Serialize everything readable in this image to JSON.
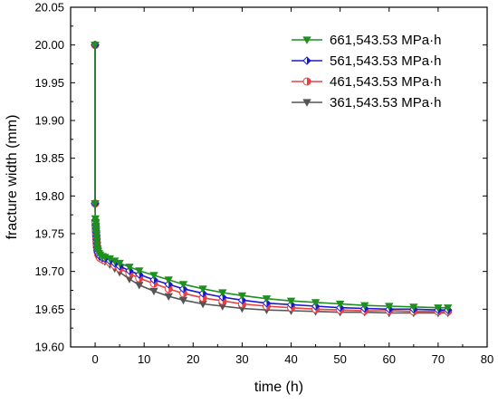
{
  "chart_data": {
    "type": "line",
    "title": "",
    "xlabel": "time (h)",
    "ylabel": "fracture width (mm)",
    "xlim": [
      -5,
      80
    ],
    "ylim": [
      19.6,
      20.05
    ],
    "xticks": [
      0,
      10,
      20,
      30,
      40,
      50,
      60,
      70,
      80
    ],
    "yticks": [
      19.6,
      19.65,
      19.7,
      19.75,
      19.8,
      19.85,
      19.9,
      19.95,
      20.0,
      20.05
    ],
    "xtick_labels": [
      "0",
      "10",
      "20",
      "30",
      "40",
      "50",
      "60",
      "70",
      "80"
    ],
    "ytick_labels": [
      "19.60",
      "19.65",
      "19.70",
      "19.75",
      "19.80",
      "19.85",
      "19.90",
      "19.95",
      "20.00",
      "20.05"
    ],
    "grid": false,
    "legend_position": "top-right",
    "series": [
      {
        "name": "661,543.53 MPa·h",
        "color": "#1f8f1f",
        "marker": "triangle-down",
        "x": [
          0,
          0,
          0.05,
          0.1,
          0.15,
          0.2,
          0.25,
          0.3,
          0.35,
          0.4,
          0.5,
          0.6,
          0.8,
          1,
          1.5,
          2,
          3,
          4,
          5,
          7,
          9,
          12,
          15,
          18,
          22,
          26,
          30,
          35,
          40,
          45,
          50,
          55,
          60,
          65,
          70,
          72
        ],
        "y": [
          20.0,
          19.79,
          19.77,
          19.765,
          19.76,
          19.755,
          19.75,
          19.745,
          19.74,
          19.735,
          19.73,
          19.727,
          19.724,
          19.722,
          19.72,
          19.719,
          19.717,
          19.714,
          19.711,
          19.706,
          19.701,
          19.695,
          19.689,
          19.683,
          19.677,
          19.672,
          19.668,
          19.664,
          19.661,
          19.659,
          19.657,
          19.655,
          19.654,
          19.653,
          19.652,
          19.652
        ]
      },
      {
        "name": "561,543.53 MPa·h",
        "color": "#1a1acc",
        "marker": "diamond-half",
        "x": [
          0,
          0,
          0.05,
          0.1,
          0.15,
          0.2,
          0.25,
          0.3,
          0.35,
          0.4,
          0.5,
          0.6,
          0.8,
          1,
          1.5,
          2,
          3,
          4,
          5,
          7,
          9,
          12,
          15,
          18,
          22,
          26,
          30,
          35,
          40,
          45,
          50,
          55,
          60,
          65,
          70,
          72
        ],
        "y": [
          20.0,
          19.79,
          19.768,
          19.762,
          19.757,
          19.752,
          19.747,
          19.742,
          19.737,
          19.732,
          19.728,
          19.725,
          19.722,
          19.72,
          19.718,
          19.717,
          19.714,
          19.711,
          19.707,
          19.701,
          19.696,
          19.689,
          19.683,
          19.677,
          19.671,
          19.666,
          19.662,
          19.658,
          19.656,
          19.654,
          19.652,
          19.651,
          19.65,
          19.65,
          19.649,
          19.649
        ]
      },
      {
        "name": "461,543.53 MPa·h",
        "color": "#e84040",
        "marker": "circle-half",
        "x": [
          0,
          0,
          0.05,
          0.1,
          0.15,
          0.2,
          0.25,
          0.3,
          0.35,
          0.4,
          0.5,
          0.6,
          0.8,
          1,
          1.5,
          2,
          3,
          4,
          5,
          7,
          9,
          12,
          15,
          18,
          22,
          26,
          30,
          35,
          40,
          45,
          50,
          55,
          60,
          65,
          70,
          72
        ],
        "y": [
          20.0,
          19.79,
          19.766,
          19.76,
          19.754,
          19.749,
          19.744,
          19.739,
          19.734,
          19.73,
          19.726,
          19.723,
          19.72,
          19.718,
          19.716,
          19.715,
          19.712,
          19.708,
          19.704,
          19.697,
          19.691,
          19.684,
          19.677,
          19.671,
          19.665,
          19.661,
          19.657,
          19.654,
          19.652,
          19.65,
          19.649,
          19.648,
          19.648,
          19.647,
          19.647,
          19.647
        ]
      },
      {
        "name": "361,543.53 MPa·h",
        "color": "#555555",
        "marker": "triangle-down",
        "x": [
          0,
          0,
          0.05,
          0.1,
          0.15,
          0.2,
          0.25,
          0.3,
          0.35,
          0.4,
          0.5,
          0.6,
          0.8,
          1,
          1.5,
          2,
          3,
          4,
          5,
          7,
          9,
          12,
          15,
          18,
          22,
          26,
          30,
          35,
          40,
          45,
          50,
          55,
          60,
          65,
          70,
          72
        ],
        "y": [
          20.0,
          19.79,
          19.764,
          19.757,
          19.751,
          19.746,
          19.741,
          19.736,
          19.731,
          19.727,
          19.723,
          19.721,
          19.719,
          19.717,
          19.715,
          19.713,
          19.709,
          19.704,
          19.699,
          19.69,
          19.682,
          19.674,
          19.667,
          19.662,
          19.657,
          19.654,
          19.651,
          19.649,
          19.648,
          19.647,
          19.646,
          19.646,
          19.645,
          19.645,
          19.645,
          19.645
        ]
      }
    ]
  }
}
